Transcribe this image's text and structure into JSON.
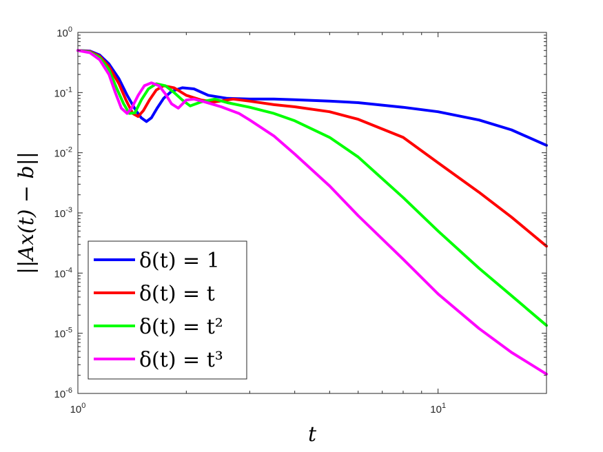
{
  "chart_data": {
    "type": "line",
    "title": "",
    "xlabel": "t",
    "ylabel": "||Ax(t) − b||",
    "x_scale": "log",
    "y_scale": "log",
    "xlim": [
      1,
      20
    ],
    "ylim": [
      1e-06,
      1
    ],
    "x_ticks": [
      {
        "value": 1,
        "base": "10",
        "exp": "0"
      },
      {
        "value": 10,
        "base": "10",
        "exp": "1"
      }
    ],
    "y_ticks": [
      {
        "value": 1,
        "base": "10",
        "exp": "0"
      },
      {
        "value": 0.1,
        "base": "10",
        "exp": "-1"
      },
      {
        "value": 0.01,
        "base": "10",
        "exp": "-2"
      },
      {
        "value": 0.001,
        "base": "10",
        "exp": "-3"
      },
      {
        "value": 0.0001,
        "base": "10",
        "exp": "-4"
      },
      {
        "value": 1e-05,
        "base": "10",
        "exp": "-5"
      },
      {
        "value": 1e-06,
        "base": "10",
        "exp": "-6"
      }
    ],
    "grid": false,
    "legend_position": "bottom-left",
    "series": [
      {
        "name": "δ(t) = 1",
        "color": "#0000ff",
        "x": [
          1.0,
          1.08,
          1.15,
          1.22,
          1.3,
          1.37,
          1.45,
          1.5,
          1.55,
          1.6,
          1.66,
          1.73,
          1.82,
          1.95,
          2.1,
          2.3,
          2.6,
          3.0,
          3.5,
          4.0,
          5.0,
          6.0,
          8.0,
          10.0,
          13.0,
          16.0,
          20.0
        ],
        "y": [
          0.5,
          0.49,
          0.42,
          0.3,
          0.17,
          0.09,
          0.05,
          0.038,
          0.033,
          0.038,
          0.055,
          0.08,
          0.105,
          0.12,
          0.115,
          0.09,
          0.08,
          0.078,
          0.078,
          0.076,
          0.072,
          0.068,
          0.057,
          0.048,
          0.035,
          0.024,
          0.0133
        ]
      },
      {
        "name": "δ(t) = t",
        "color": "#ff0000",
        "x": [
          1.0,
          1.08,
          1.15,
          1.22,
          1.3,
          1.36,
          1.42,
          1.47,
          1.52,
          1.58,
          1.65,
          1.73,
          1.85,
          2.0,
          2.2,
          2.4,
          2.7,
          3.0,
          3.5,
          4.0,
          5.0,
          6.0,
          8.0,
          10.0,
          13.0,
          16.0,
          20.0
        ],
        "y": [
          0.5,
          0.48,
          0.4,
          0.27,
          0.14,
          0.075,
          0.045,
          0.04,
          0.05,
          0.075,
          0.11,
          0.13,
          0.12,
          0.09,
          0.075,
          0.07,
          0.078,
          0.072,
          0.063,
          0.058,
          0.048,
          0.036,
          0.018,
          0.0068,
          0.0022,
          0.00085,
          0.00028
        ]
      },
      {
        "name": "δ(t) = t²",
        "color": "#00ff00",
        "x": [
          1.0,
          1.08,
          1.15,
          1.22,
          1.28,
          1.34,
          1.39,
          1.44,
          1.5,
          1.57,
          1.65,
          1.75,
          1.85,
          1.95,
          2.05,
          2.2,
          2.4,
          2.6,
          3.0,
          3.5,
          4.0,
          5.0,
          6.0,
          8.0,
          10.0,
          13.0,
          16.0,
          20.0
        ],
        "y": [
          0.5,
          0.47,
          0.38,
          0.24,
          0.12,
          0.065,
          0.045,
          0.046,
          0.075,
          0.115,
          0.14,
          0.13,
          0.1,
          0.075,
          0.06,
          0.07,
          0.078,
          0.068,
          0.057,
          0.045,
          0.034,
          0.018,
          0.0085,
          0.0018,
          0.0005,
          0.00012,
          4.2e-05,
          1.35e-05
        ]
      },
      {
        "name": "δ(t) = t³",
        "color": "#ff00ff",
        "x": [
          1.0,
          1.08,
          1.15,
          1.22,
          1.27,
          1.32,
          1.37,
          1.41,
          1.47,
          1.53,
          1.6,
          1.68,
          1.75,
          1.82,
          1.9,
          2.0,
          2.1,
          2.25,
          2.5,
          2.8,
          3.0,
          3.5,
          4.0,
          5.0,
          6.0,
          8.0,
          10.0,
          13.0,
          16.0,
          20.0
        ],
        "y": [
          0.5,
          0.46,
          0.35,
          0.2,
          0.1,
          0.055,
          0.045,
          0.055,
          0.09,
          0.13,
          0.145,
          0.13,
          0.095,
          0.065,
          0.055,
          0.075,
          0.078,
          0.07,
          0.058,
          0.045,
          0.035,
          0.019,
          0.0095,
          0.0028,
          0.0009,
          0.00017,
          4.5e-05,
          1.2e-05,
          4.8e-06,
          2.1e-06
        ]
      }
    ]
  }
}
